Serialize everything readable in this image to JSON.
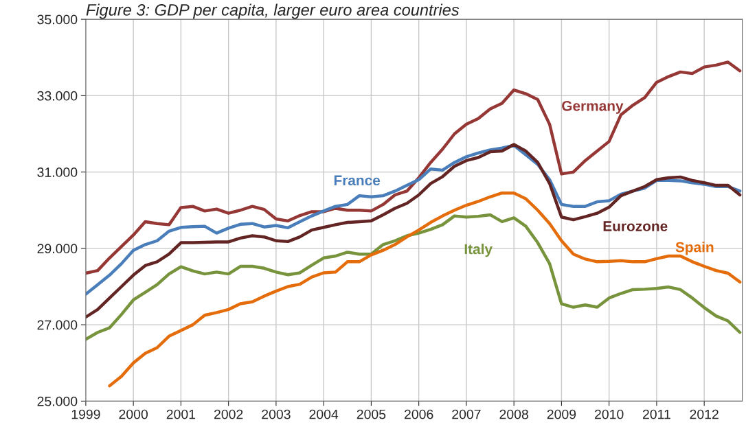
{
  "chart_data": {
    "type": "line",
    "title": "Figure 3: GDP per capita, larger euro area countries",
    "x": [
      1999.0,
      1999.25,
      1999.5,
      1999.75,
      2000.0,
      2000.25,
      2000.5,
      2000.75,
      2001.0,
      2001.25,
      2001.5,
      2001.75,
      2002.0,
      2002.25,
      2002.5,
      2002.75,
      2003.0,
      2003.25,
      2003.5,
      2003.75,
      2004.0,
      2004.25,
      2004.5,
      2004.75,
      2005.0,
      2005.25,
      2005.5,
      2005.75,
      2006.0,
      2006.25,
      2006.5,
      2006.75,
      2007.0,
      2007.25,
      2007.5,
      2007.75,
      2008.0,
      2008.25,
      2008.5,
      2008.75,
      2009.0,
      2009.25,
      2009.5,
      2009.75,
      2010.0,
      2010.25,
      2010.5,
      2010.75,
      2011.0,
      2011.25,
      2011.5,
      2011.75,
      2012.0,
      2012.25,
      2012.5,
      2012.75
    ],
    "series": [
      {
        "name": "Germany",
        "color": "#953735",
        "values": [
          28350,
          28420,
          28750,
          29050,
          29350,
          29700,
          29650,
          29620,
          30070,
          30100,
          29980,
          30030,
          29920,
          30000,
          30100,
          30020,
          29770,
          29720,
          29860,
          29960,
          29960,
          30050,
          30000,
          30000,
          29980,
          30150,
          30400,
          30500,
          30850,
          31250,
          31600,
          32000,
          32250,
          32400,
          32650,
          32800,
          33150,
          33050,
          32900,
          32250,
          30950,
          31000,
          31300,
          31550,
          31800,
          32500,
          32750,
          32950,
          33350,
          33500,
          33620,
          33580,
          33750,
          33800,
          33880,
          33650
        ]
      },
      {
        "name": "France",
        "color": "#4a7ebb",
        "values": [
          27800,
          28050,
          28300,
          28600,
          28950,
          29100,
          29200,
          29450,
          29550,
          29570,
          29580,
          29400,
          29530,
          29630,
          29650,
          29560,
          29600,
          29540,
          29700,
          29850,
          29980,
          30100,
          30150,
          30380,
          30350,
          30380,
          30500,
          30650,
          30800,
          31080,
          31050,
          31250,
          31400,
          31500,
          31580,
          31630,
          31700,
          31450,
          31200,
          30800,
          30150,
          30100,
          30100,
          30220,
          30250,
          30420,
          30500,
          30580,
          30780,
          30780,
          30770,
          30720,
          30680,
          30620,
          30620,
          30500
        ]
      },
      {
        "name": "Eurozone",
        "color": "#632523",
        "values": [
          27200,
          27400,
          27700,
          28000,
          28300,
          28550,
          28650,
          28850,
          29150,
          29150,
          29160,
          29170,
          29170,
          29270,
          29330,
          29300,
          29200,
          29180,
          29300,
          29480,
          29550,
          29620,
          29680,
          29700,
          29720,
          29880,
          30050,
          30180,
          30400,
          30700,
          30880,
          31150,
          31300,
          31380,
          31530,
          31550,
          31720,
          31550,
          31250,
          30700,
          29820,
          29750,
          29830,
          29920,
          30080,
          30380,
          30500,
          30620,
          30800,
          30850,
          30870,
          30780,
          30720,
          30650,
          30650,
          30400
        ]
      },
      {
        "name": "Italy",
        "color": "#77933c",
        "values": [
          26620,
          26800,
          26920,
          27270,
          27650,
          27850,
          28050,
          28330,
          28520,
          28410,
          28330,
          28380,
          28330,
          28530,
          28530,
          28480,
          28380,
          28310,
          28360,
          28560,
          28750,
          28800,
          28900,
          28850,
          28850,
          29100,
          29200,
          29330,
          29400,
          29500,
          29620,
          29850,
          29820,
          29840,
          29880,
          29700,
          29800,
          29580,
          29150,
          28600,
          27550,
          27460,
          27520,
          27460,
          27700,
          27820,
          27920,
          27930,
          27950,
          27990,
          27920,
          27700,
          27450,
          27230,
          27100,
          26800
        ]
      },
      {
        "name": "Spain",
        "color": "#e46c0a",
        "values": [
          null,
          null,
          25400,
          25650,
          26000,
          26250,
          26400,
          26700,
          26850,
          27000,
          27250,
          27320,
          27400,
          27550,
          27600,
          27750,
          27880,
          28000,
          28060,
          28250,
          28360,
          28380,
          28650,
          28650,
          28830,
          28950,
          29100,
          29300,
          29480,
          29680,
          29850,
          30000,
          30130,
          30230,
          30350,
          30450,
          30450,
          30300,
          30000,
          29650,
          29200,
          28850,
          28720,
          28650,
          28660,
          28680,
          28650,
          28650,
          28730,
          28800,
          28800,
          28650,
          28530,
          28420,
          28350,
          28120
        ]
      }
    ],
    "xlim": [
      1999,
      2012.8
    ],
    "xticks": [
      1999,
      2000,
      2001,
      2002,
      2003,
      2004,
      2005,
      2006,
      2007,
      2008,
      2009,
      2010,
      2011,
      2012
    ],
    "ylim": [
      25000,
      35000
    ],
    "yticks": [
      {
        "value": 25000,
        "label": "25.000"
      },
      {
        "value": 27000,
        "label": "27.000"
      },
      {
        "value": 29000,
        "label": "29.000"
      },
      {
        "value": 31000,
        "label": "31.000"
      },
      {
        "value": 33000,
        "label": "33.000"
      },
      {
        "value": 35000,
        "label": "35.000"
      }
    ],
    "grid": true,
    "legend": false,
    "marker": "none",
    "line_style": "solid"
  }
}
